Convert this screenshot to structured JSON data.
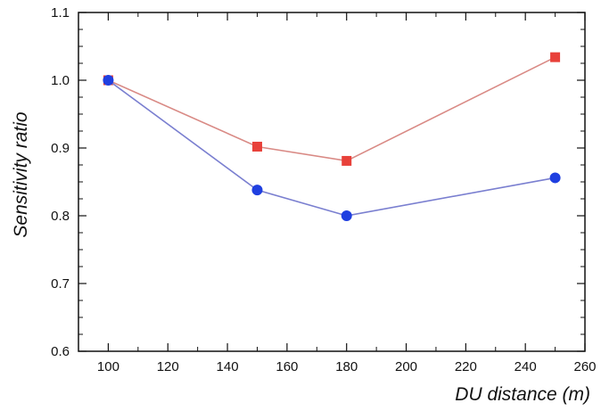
{
  "chart_data": {
    "type": "line",
    "title": "",
    "xlabel": "DU distance (m)",
    "ylabel": "Sensitivity ratio",
    "xlim": [
      90,
      260
    ],
    "ylim": [
      0.6,
      1.1
    ],
    "xticks": [
      100,
      120,
      140,
      160,
      180,
      200,
      220,
      240,
      260
    ],
    "xtick_labels": [
      "100",
      "120",
      "140",
      "160",
      "180",
      "200",
      "220",
      "240",
      "260"
    ],
    "yticks": [
      0.6,
      0.7,
      0.8,
      0.9,
      1.0,
      1.1
    ],
    "ytick_labels": [
      "0.6",
      "0.7",
      "0.8",
      "0.9",
      "1.0",
      "1.1"
    ],
    "grid": false,
    "series": [
      {
        "marker": "square",
        "line_color": "#d98a85",
        "marker_color": "#e8413a",
        "x": [
          100,
          150,
          180,
          250
        ],
        "y": [
          1.0,
          0.902,
          0.881,
          1.034
        ]
      },
      {
        "marker": "circle",
        "line_color": "#7a7fd0",
        "marker_color": "#1f3fe0",
        "x": [
          100,
          150,
          180,
          250
        ],
        "y": [
          1.0,
          0.838,
          0.8,
          0.856
        ]
      }
    ]
  }
}
